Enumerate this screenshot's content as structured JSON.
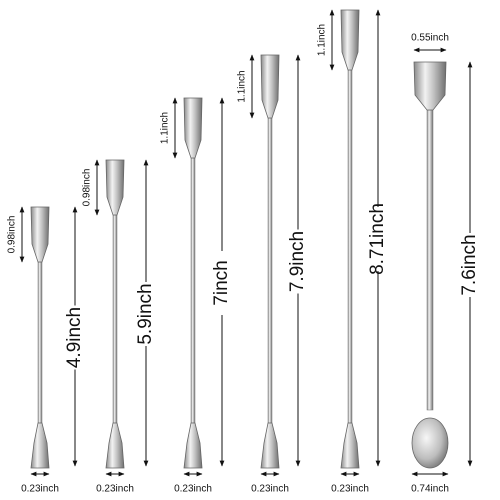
{
  "items": [
    {
      "head": "0.98inch",
      "length": "4.9inch",
      "width": "0.23inch"
    },
    {
      "head": "0.98inch",
      "length": "5.9inch",
      "width": "0.23inch"
    },
    {
      "head": "1.1inch",
      "length": "7inch",
      "width": "0.23inch"
    },
    {
      "head": "1.1inch",
      "length": "7.9inch",
      "width": "0.23inch"
    },
    {
      "head": "1.1inch",
      "length": "8.71inch",
      "width": "0.23inch"
    },
    {
      "top_width": "0.55inch",
      "length": "7.6inch",
      "width": "0.74inch"
    }
  ]
}
